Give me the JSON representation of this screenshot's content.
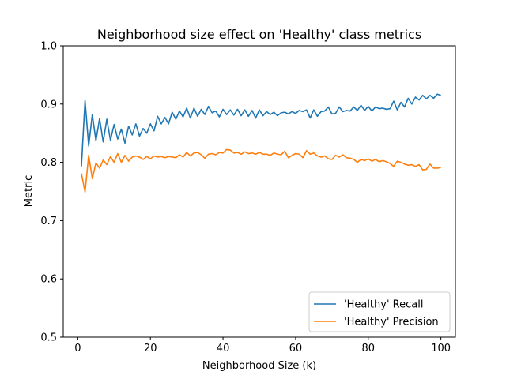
{
  "chart_data": {
    "type": "line",
    "title": "Neighborhood size effect on 'Healthy' class metrics",
    "xlabel": "Neighborhood Size (k)",
    "ylabel": "Metric",
    "xlim": [
      -4,
      104
    ],
    "ylim": [
      0.5,
      1.0
    ],
    "xticks": [
      0,
      20,
      40,
      60,
      80,
      100
    ],
    "xtick_labels": [
      "0",
      "20",
      "40",
      "60",
      "80",
      "100"
    ],
    "yticks": [
      0.5,
      0.6,
      0.7,
      0.8,
      0.9,
      1.0
    ],
    "ytick_labels": [
      "0.5",
      "0.6",
      "0.7",
      "0.8",
      "0.9",
      "1.0"
    ],
    "grid": false,
    "legend_position": "lower-right",
    "series": [
      {
        "name": "'Healthy' Recall",
        "color": "#1f77b4",
        "x_start": 1,
        "x_step": 1,
        "values": [
          0.793,
          0.906,
          0.828,
          0.882,
          0.837,
          0.875,
          0.835,
          0.874,
          0.838,
          0.865,
          0.84,
          0.857,
          0.833,
          0.862,
          0.847,
          0.866,
          0.845,
          0.858,
          0.85,
          0.866,
          0.854,
          0.879,
          0.866,
          0.877,
          0.866,
          0.886,
          0.874,
          0.888,
          0.878,
          0.893,
          0.876,
          0.893,
          0.879,
          0.891,
          0.882,
          0.896,
          0.885,
          0.888,
          0.878,
          0.891,
          0.882,
          0.89,
          0.881,
          0.891,
          0.88,
          0.89,
          0.879,
          0.889,
          0.876,
          0.89,
          0.88,
          0.887,
          0.882,
          0.886,
          0.88,
          0.885,
          0.886,
          0.883,
          0.887,
          0.884,
          0.889,
          0.887,
          0.89,
          0.876,
          0.89,
          0.879,
          0.887,
          0.888,
          0.895,
          0.883,
          0.884,
          0.895,
          0.887,
          0.889,
          0.888,
          0.895,
          0.889,
          0.898,
          0.889,
          0.896,
          0.888,
          0.895,
          0.892,
          0.893,
          0.891,
          0.892,
          0.905,
          0.89,
          0.903,
          0.895,
          0.91,
          0.9,
          0.912,
          0.907,
          0.915,
          0.909,
          0.915,
          0.91,
          0.917,
          0.915
        ]
      },
      {
        "name": "'Healthy' Precision",
        "color": "#ff7f0e",
        "x_start": 1,
        "x_step": 1,
        "values": [
          0.781,
          0.749,
          0.812,
          0.772,
          0.799,
          0.79,
          0.804,
          0.796,
          0.81,
          0.8,
          0.815,
          0.8,
          0.812,
          0.802,
          0.809,
          0.811,
          0.809,
          0.805,
          0.81,
          0.806,
          0.811,
          0.809,
          0.81,
          0.808,
          0.81,
          0.809,
          0.808,
          0.813,
          0.809,
          0.817,
          0.811,
          0.816,
          0.817,
          0.813,
          0.807,
          0.814,
          0.815,
          0.813,
          0.817,
          0.816,
          0.822,
          0.821,
          0.816,
          0.817,
          0.814,
          0.818,
          0.815,
          0.816,
          0.814,
          0.817,
          0.814,
          0.814,
          0.812,
          0.816,
          0.814,
          0.813,
          0.819,
          0.808,
          0.812,
          0.815,
          0.814,
          0.808,
          0.82,
          0.814,
          0.816,
          0.811,
          0.809,
          0.811,
          0.806,
          0.805,
          0.812,
          0.809,
          0.813,
          0.808,
          0.807,
          0.805,
          0.8,
          0.805,
          0.803,
          0.806,
          0.802,
          0.805,
          0.801,
          0.803,
          0.801,
          0.798,
          0.793,
          0.802,
          0.8,
          0.797,
          0.795,
          0.796,
          0.793,
          0.796,
          0.787,
          0.788,
          0.797,
          0.79,
          0.79,
          0.791
        ]
      }
    ]
  }
}
